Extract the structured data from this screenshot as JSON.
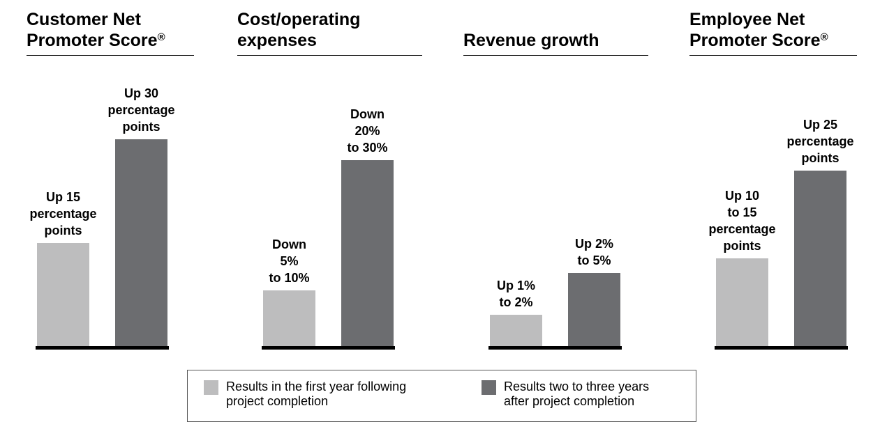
{
  "chart_data": {
    "type": "bar",
    "categories": [
      "Results in the first year following project completion",
      "Results two to three years after project completion"
    ],
    "panels": [
      {
        "title_lines": [
          "Customer Net",
          "Promoter Score"
        ],
        "title_mark": "®",
        "bars": [
          {
            "series": "first_year",
            "value": 15,
            "label_lines": [
              "Up 15",
              "percentage",
              "points"
            ]
          },
          {
            "series": "two_to_three_years",
            "value": 30,
            "label_lines": [
              "Up 30",
              "percentage",
              "points"
            ]
          }
        ]
      },
      {
        "title_lines": [
          "Cost/operating",
          "expenses"
        ],
        "title_mark": "",
        "bars": [
          {
            "series": "first_year",
            "value": 7.5,
            "label_lines": [
              "Down",
              "5%",
              "to 10%"
            ]
          },
          {
            "series": "two_to_three_years",
            "value": 25,
            "label_lines": [
              "Down",
              "20%",
              "to 30%"
            ]
          }
        ]
      },
      {
        "title_lines": [
          "Revenue growth"
        ],
        "title_mark": "",
        "bars": [
          {
            "series": "first_year",
            "value": 1.5,
            "label_lines": [
              "Up 1%",
              "to 2%"
            ]
          },
          {
            "series": "two_to_three_years",
            "value": 3.5,
            "label_lines": [
              "Up 2%",
              "to 5%"
            ]
          }
        ]
      },
      {
        "title_lines": [
          "Employee Net",
          "Promoter Score"
        ],
        "title_mark": "®",
        "bars": [
          {
            "series": "first_year",
            "value": 12.5,
            "label_lines": [
              "Up 10",
              "to 15",
              "percentage",
              "points"
            ]
          },
          {
            "series": "two_to_three_years",
            "value": 25,
            "label_lines": [
              "Up 25",
              "percentage",
              "points"
            ]
          }
        ]
      }
    ],
    "legend": [
      {
        "series": "first_year",
        "lines": [
          "Results in the first year following",
          "project completion"
        ],
        "color": "#bdbdbe"
      },
      {
        "series": "two_to_three_years",
        "lines": [
          "Results two to three years",
          "after project completion"
        ],
        "color": "#6c6d70"
      }
    ]
  }
}
